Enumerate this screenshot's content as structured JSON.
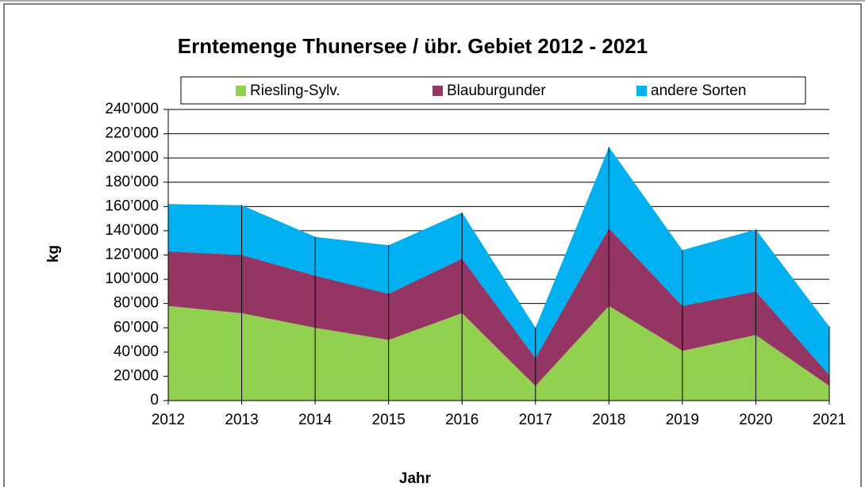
{
  "chart_data": {
    "type": "stacked_area",
    "title": "Erntemenge Thunersee / übr. Gebiet 2012 - 2021",
    "xlabel": "Jahr",
    "ylabel": "kg",
    "x": [
      2012,
      2013,
      2014,
      2015,
      2016,
      2017,
      2018,
      2019,
      2020,
      2021
    ],
    "xlim": [
      2012,
      2021
    ],
    "xticks": [
      2012,
      2013,
      2014,
      2015,
      2016,
      2017,
      2018,
      2019,
      2020,
      2021
    ],
    "ylim": [
      0,
      240000
    ],
    "yticks": [
      0,
      {
        "value": 20000,
        "label": "20’000"
      },
      {
        "value": 40000,
        "label": "40’000"
      },
      {
        "value": 60000,
        "label": "60’000"
      },
      {
        "value": 80000,
        "label": "80’000"
      },
      {
        "value": 100000,
        "label": "100’000"
      },
      {
        "value": 120000,
        "label": "120’000"
      },
      {
        "value": 140000,
        "label": "140’000"
      },
      {
        "value": 160000,
        "label": "160’000"
      },
      {
        "value": 180000,
        "label": "180’000"
      },
      {
        "value": 200000,
        "label": "200’000"
      },
      {
        "value": 220000,
        "label": "220’000"
      },
      {
        "value": 240000,
        "label": "240’000"
      }
    ],
    "grid": true,
    "legend": "top",
    "series": [
      {
        "name": "Riesling-Sylv.",
        "color": "#92d050",
        "values": [
          78000,
          72000,
          60000,
          50000,
          72000,
          12000,
          78000,
          41000,
          54000,
          12000
        ]
      },
      {
        "name": "Blauburgunder",
        "color": "#953563",
        "values": [
          45000,
          48000,
          43000,
          38000,
          45000,
          23000,
          64000,
          37000,
          36000,
          9000
        ]
      },
      {
        "name": "andere Sorten",
        "color": "#00b0f0",
        "values": [
          39000,
          41000,
          32000,
          40000,
          38000,
          25000,
          67000,
          46000,
          51000,
          40000
        ]
      }
    ]
  }
}
